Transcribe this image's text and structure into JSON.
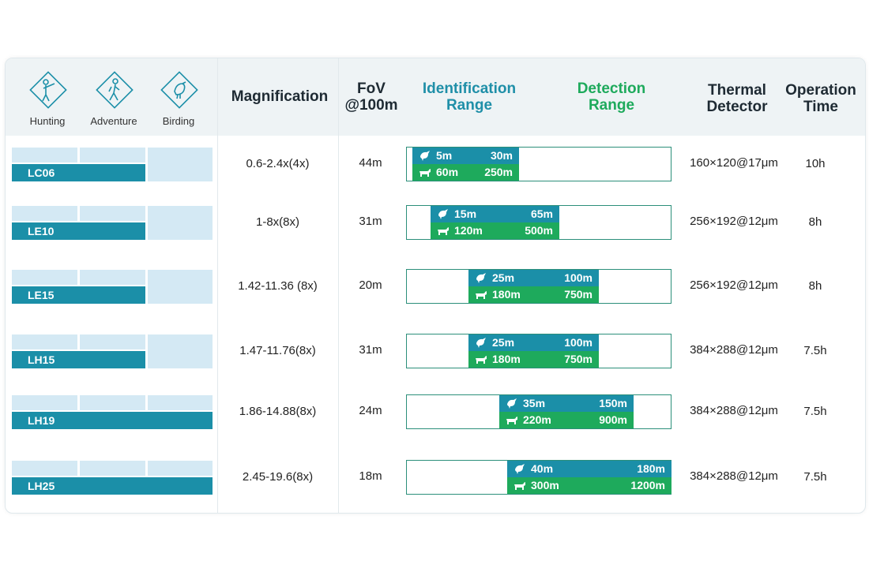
{
  "colors": {
    "accent_teal": "#1b8fa8",
    "accent_green": "#1eaa5c",
    "light_blue": "#d4e9f4"
  },
  "header": {
    "uses": [
      {
        "label": "Hunting",
        "icon": "hunter-icon"
      },
      {
        "label": "Adventure",
        "icon": "hiker-icon"
      },
      {
        "label": "Birding",
        "icon": "bird-icon"
      }
    ],
    "magnification": "Magnification",
    "fov": {
      "line1": "FoV",
      "line2": "@100m"
    },
    "identification": {
      "line1": "Identification",
      "line2": "Range"
    },
    "detection": {
      "line1": "Detection",
      "line2": "Range"
    },
    "thermal": {
      "line1": "Thermal",
      "line2": "Detector"
    },
    "operation": {
      "line1": "Operation",
      "line2": "Time"
    }
  },
  "rows": [
    {
      "model": "LC06",
      "uses_filled": 2,
      "magnification": "0.6-2.4x(4x)",
      "fov": "44m",
      "id_min": "5m",
      "id_max": "30m",
      "det_min": "60m",
      "det_max": "250m",
      "thermal": "160×120@17μm",
      "time": "10h"
    },
    {
      "model": "LE10",
      "uses_filled": 2,
      "magnification": "1-8x(8x)",
      "fov": "31m",
      "id_min": "15m",
      "id_max": "65m",
      "det_min": "120m",
      "det_max": "500m",
      "thermal": "256×192@12μm",
      "time": "8h"
    },
    {
      "model": "LE15",
      "uses_filled": 2,
      "magnification": "1.42-11.36 (8x)",
      "fov": "20m",
      "id_min": "25m",
      "id_max": "100m",
      "det_min": "180m",
      "det_max": "750m",
      "thermal": "256×192@12μm",
      "time": "8h"
    },
    {
      "model": "LH15",
      "uses_filled": 2,
      "magnification": "1.47-11.76(8x)",
      "fov": "31m",
      "id_min": "25m",
      "id_max": "100m",
      "det_min": "180m",
      "det_max": "750m",
      "thermal": "384×288@12μm",
      "time": "7.5h"
    },
    {
      "model": "LH19",
      "uses_filled": 3,
      "magnification": "1.86-14.88(8x)",
      "fov": "24m",
      "id_min": "35m",
      "id_max": "150m",
      "det_min": "220m",
      "det_max": "900m",
      "thermal": "384×288@12μm",
      "time": "7.5h"
    },
    {
      "model": "LH25",
      "uses_filled": 3,
      "magnification": "2.45-19.6(8x)",
      "fov": "18m",
      "id_min": "40m",
      "id_max": "180m",
      "det_min": "300m",
      "det_max": "1200m",
      "thermal": "384×288@12μm",
      "time": "7.5h"
    }
  ]
}
